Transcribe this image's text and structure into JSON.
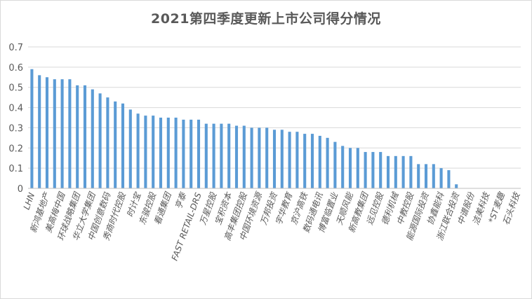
{
  "chart_data": {
    "type": "bar",
    "title": "2021第四季度更新上市公司得分情况",
    "xlabel": "",
    "ylabel": "",
    "ylim": [
      0,
      0.7
    ],
    "yticks": [
      "0",
      "0.1",
      "0.2",
      "0.3",
      "0.4",
      "0.5",
      "0.6",
      "0.7"
    ],
    "grid": true,
    "legend": "none",
    "bar_color": "#5b9bd5",
    "categories": [
      "LHN",
      "",
      "新鸿基地产",
      "",
      "美高梅中国",
      "",
      "环球战略集团",
      "",
      "华立大学集团",
      "",
      "中国创意数码",
      "",
      "秀商时代控股",
      "",
      "时计宝",
      "",
      "东骏控股",
      "",
      "看通集团",
      "",
      "亨泰",
      "",
      "FAST RETAIL-DRS",
      "",
      "万星控股",
      "",
      "宝积资本",
      "",
      "高丰集团控股",
      "",
      "中国环境资源",
      "",
      "万邦投资",
      "",
      "宇华教育",
      "",
      "京沪高铁",
      "",
      "数码通电讯",
      "",
      "博富临置业",
      "",
      "天顺风能",
      "",
      "新高教集团",
      "",
      "远见控股",
      "",
      "德利机械",
      "",
      "中教控股",
      "",
      "能源国际投资",
      "",
      "协鑫能科",
      "",
      "浙江联合投资",
      "",
      "中谱股份",
      "",
      "洁美科技",
      "",
      "*ST麦趣",
      "",
      "石头科技"
    ],
    "values": [
      0.59,
      0.56,
      0.55,
      0.54,
      0.54,
      0.54,
      0.51,
      0.51,
      0.49,
      0.47,
      0.45,
      0.43,
      0.42,
      0.39,
      0.37,
      0.36,
      0.36,
      0.35,
      0.35,
      0.35,
      0.34,
      0.34,
      0.34,
      0.32,
      0.32,
      0.32,
      0.32,
      0.31,
      0.31,
      0.3,
      0.3,
      0.3,
      0.29,
      0.29,
      0.28,
      0.28,
      0.27,
      0.27,
      0.26,
      0.25,
      0.23,
      0.21,
      0.2,
      0.2,
      0.18,
      0.18,
      0.18,
      0.16,
      0.16,
      0.16,
      0.16,
      0.12,
      0.12,
      0.12,
      0.1,
      0.09,
      0.02,
      0,
      0,
      0,
      0,
      0,
      0,
      0,
      0
    ]
  }
}
